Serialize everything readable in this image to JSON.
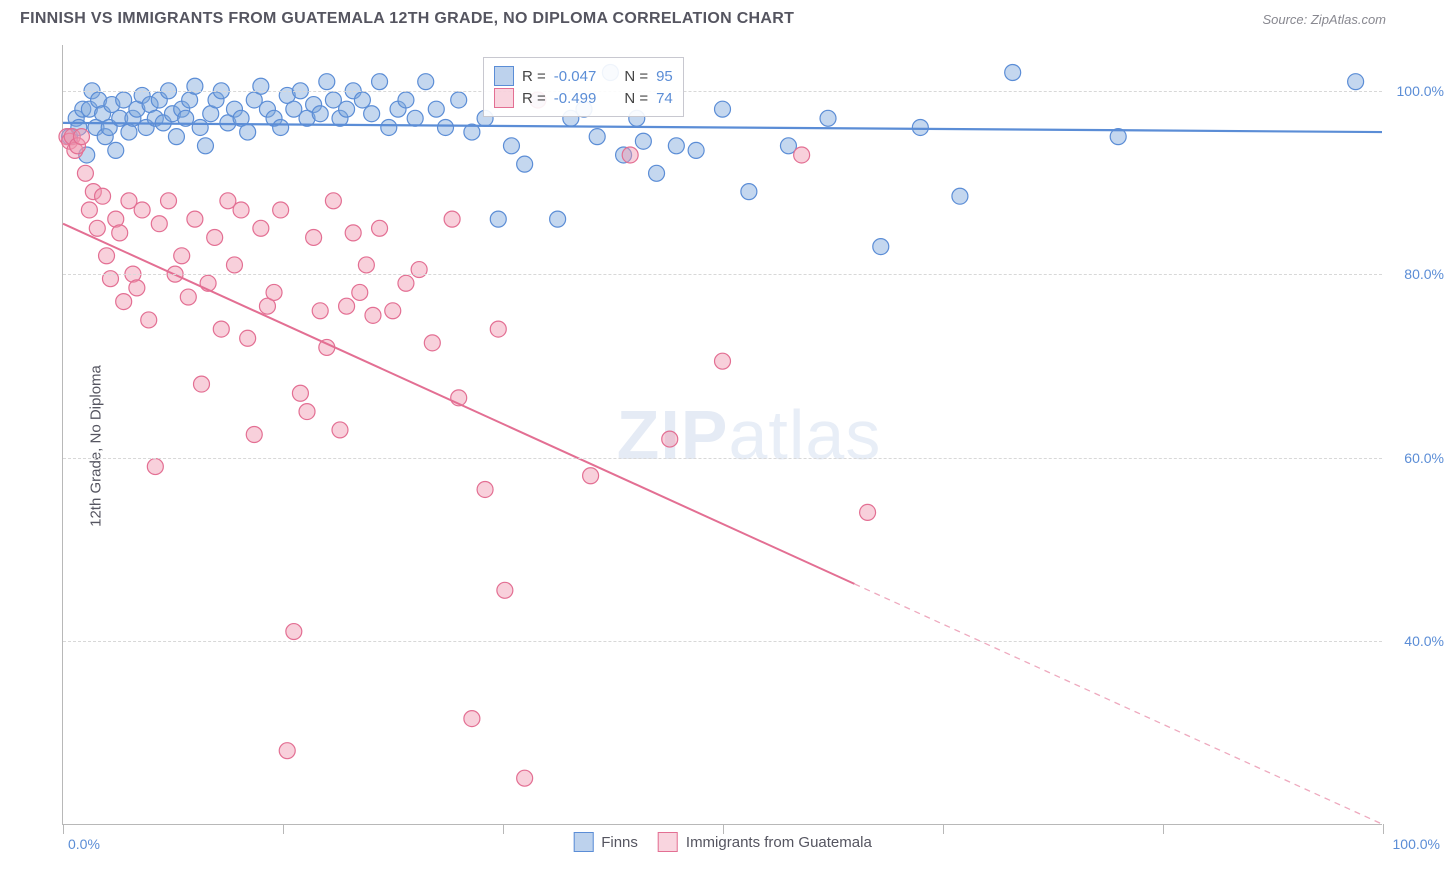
{
  "title": "FINNISH VS IMMIGRANTS FROM GUATEMALA 12TH GRADE, NO DIPLOMA CORRELATION CHART",
  "source": "Source: ZipAtlas.com",
  "ylabel": "12th Grade, No Diploma",
  "watermark_pre": "ZIP",
  "watermark_post": "atlas",
  "chart": {
    "type": "scatter",
    "xlim": [
      0,
      100
    ],
    "ylim": [
      20,
      105
    ],
    "yticks": [
      {
        "v": 40,
        "label": "40.0%"
      },
      {
        "v": 60,
        "label": "60.0%"
      },
      {
        "v": 80,
        "label": "80.0%"
      },
      {
        "v": 100,
        "label": "100.0%"
      }
    ],
    "xtick_positions_pct": [
      0,
      16.67,
      33.33,
      50,
      66.67,
      83.33,
      100
    ],
    "xtick_labels": {
      "left": "0.0%",
      "right": "100.0%"
    },
    "background_color": "#ffffff",
    "grid_color": "#d8d8d8",
    "marker_radius": 8,
    "marker_opacity": 0.45,
    "series": [
      {
        "name": "Finns",
        "fill_color": "#7ca6dc",
        "stroke_color": "#5b8dd6",
        "R": "-0.047",
        "N": "95",
        "trend": {
          "x1": 0,
          "y1": 96.5,
          "x2": 100,
          "y2": 95.5,
          "width": 2.2,
          "solid_until_x": 100
        },
        "points": [
          [
            0.5,
            95
          ],
          [
            1,
            97
          ],
          [
            1.2,
            96
          ],
          [
            1.5,
            98
          ],
          [
            1.8,
            93
          ],
          [
            2,
            98
          ],
          [
            2.2,
            100
          ],
          [
            2.5,
            96
          ],
          [
            2.7,
            99
          ],
          [
            3,
            97.5
          ],
          [
            3.2,
            95
          ],
          [
            3.5,
            96
          ],
          [
            3.7,
            98.5
          ],
          [
            4,
            93.5
          ],
          [
            4.3,
            97
          ],
          [
            4.6,
            99
          ],
          [
            5,
            95.5
          ],
          [
            5.3,
            97
          ],
          [
            5.6,
            98
          ],
          [
            6,
            99.5
          ],
          [
            6.3,
            96
          ],
          [
            6.6,
            98.5
          ],
          [
            7,
            97
          ],
          [
            7.3,
            99
          ],
          [
            7.6,
            96.5
          ],
          [
            8,
            100
          ],
          [
            8.3,
            97.5
          ],
          [
            8.6,
            95
          ],
          [
            9,
            98
          ],
          [
            9.3,
            97
          ],
          [
            9.6,
            99
          ],
          [
            10,
            100.5
          ],
          [
            10.4,
            96
          ],
          [
            10.8,
            94
          ],
          [
            11.2,
            97.5
          ],
          [
            11.6,
            99
          ],
          [
            12,
            100
          ],
          [
            12.5,
            96.5
          ],
          [
            13,
            98
          ],
          [
            13.5,
            97
          ],
          [
            14,
            95.5
          ],
          [
            14.5,
            99
          ],
          [
            15,
            100.5
          ],
          [
            15.5,
            98
          ],
          [
            16,
            97
          ],
          [
            16.5,
            96
          ],
          [
            17,
            99.5
          ],
          [
            17.5,
            98
          ],
          [
            18,
            100
          ],
          [
            18.5,
            97
          ],
          [
            19,
            98.5
          ],
          [
            19.5,
            97.5
          ],
          [
            20,
            101
          ],
          [
            20.5,
            99
          ],
          [
            21,
            97
          ],
          [
            21.5,
            98
          ],
          [
            22,
            100
          ],
          [
            22.7,
            99
          ],
          [
            23.4,
            97.5
          ],
          [
            24,
            101
          ],
          [
            24.7,
            96
          ],
          [
            25.4,
            98
          ],
          [
            26,
            99
          ],
          [
            26.7,
            97
          ],
          [
            27.5,
            101
          ],
          [
            28.3,
            98
          ],
          [
            29,
            96
          ],
          [
            30,
            99
          ],
          [
            31,
            95.5
          ],
          [
            32,
            97
          ],
          [
            33,
            86
          ],
          [
            34,
            94
          ],
          [
            35,
            92
          ],
          [
            36,
            99
          ],
          [
            37.5,
            86
          ],
          [
            38.5,
            97
          ],
          [
            39.5,
            98
          ],
          [
            40.5,
            95
          ],
          [
            41.5,
            102
          ],
          [
            42.5,
            93
          ],
          [
            43.5,
            97
          ],
          [
            44,
            94.5
          ],
          [
            45,
            91
          ],
          [
            46.5,
            94
          ],
          [
            48,
            93.5
          ],
          [
            50,
            98
          ],
          [
            52,
            89
          ],
          [
            55,
            94
          ],
          [
            58,
            97
          ],
          [
            62,
            83
          ],
          [
            65,
            96
          ],
          [
            68,
            88.5
          ],
          [
            72,
            102
          ],
          [
            80,
            95
          ],
          [
            98,
            101
          ]
        ]
      },
      {
        "name": "Immigrants from Guatemala",
        "fill_color": "#f096af",
        "stroke_color": "#e36f93",
        "R": "-0.499",
        "N": "74",
        "trend": {
          "x1": 0,
          "y1": 85.5,
          "x2": 100,
          "y2": 20,
          "width": 2,
          "solid_until_x": 60
        },
        "points": [
          [
            0.3,
            95
          ],
          [
            0.5,
            94.5
          ],
          [
            0.7,
            95
          ],
          [
            0.9,
            93.5
          ],
          [
            1.1,
            94
          ],
          [
            1.4,
            95
          ],
          [
            1.7,
            91
          ],
          [
            2,
            87
          ],
          [
            2.3,
            89
          ],
          [
            2.6,
            85
          ],
          [
            3,
            88.5
          ],
          [
            3.3,
            82
          ],
          [
            3.6,
            79.5
          ],
          [
            4,
            86
          ],
          [
            4.3,
            84.5
          ],
          [
            4.6,
            77
          ],
          [
            5,
            88
          ],
          [
            5.3,
            80
          ],
          [
            5.6,
            78.5
          ],
          [
            6,
            87
          ],
          [
            6.5,
            75
          ],
          [
            7,
            59
          ],
          [
            7.3,
            85.5
          ],
          [
            8,
            88
          ],
          [
            8.5,
            80
          ],
          [
            9,
            82
          ],
          [
            9.5,
            77.5
          ],
          [
            10,
            86
          ],
          [
            10.5,
            68
          ],
          [
            11,
            79
          ],
          [
            11.5,
            84
          ],
          [
            12,
            74
          ],
          [
            12.5,
            88
          ],
          [
            13,
            81
          ],
          [
            13.5,
            87
          ],
          [
            14,
            73
          ],
          [
            14.5,
            62.5
          ],
          [
            15,
            85
          ],
          [
            15.5,
            76.5
          ],
          [
            16,
            78
          ],
          [
            16.5,
            87
          ],
          [
            17,
            28
          ],
          [
            17.5,
            41
          ],
          [
            18,
            67
          ],
          [
            18.5,
            65
          ],
          [
            19,
            84
          ],
          [
            19.5,
            76
          ],
          [
            20,
            72
          ],
          [
            20.5,
            88
          ],
          [
            21,
            63
          ],
          [
            21.5,
            76.5
          ],
          [
            22,
            84.5
          ],
          [
            22.5,
            78
          ],
          [
            23,
            81
          ],
          [
            23.5,
            75.5
          ],
          [
            24,
            85
          ],
          [
            25,
            76
          ],
          [
            26,
            79
          ],
          [
            27,
            80.5
          ],
          [
            28,
            72.5
          ],
          [
            29.5,
            86
          ],
          [
            30,
            66.5
          ],
          [
            31,
            31.5
          ],
          [
            32,
            56.5
          ],
          [
            33,
            74
          ],
          [
            33.5,
            45.5
          ],
          [
            35,
            25
          ],
          [
            36,
            99
          ],
          [
            40,
            58
          ],
          [
            43,
            93
          ],
          [
            46,
            62
          ],
          [
            50,
            70.5
          ],
          [
            56,
            93
          ],
          [
            61,
            54
          ]
        ]
      }
    ]
  },
  "legend": {
    "series1": "Finns",
    "series2": "Immigrants from Guatemala"
  },
  "stats_labels": {
    "r_eq": "R = ",
    "n_eq": "N = "
  }
}
